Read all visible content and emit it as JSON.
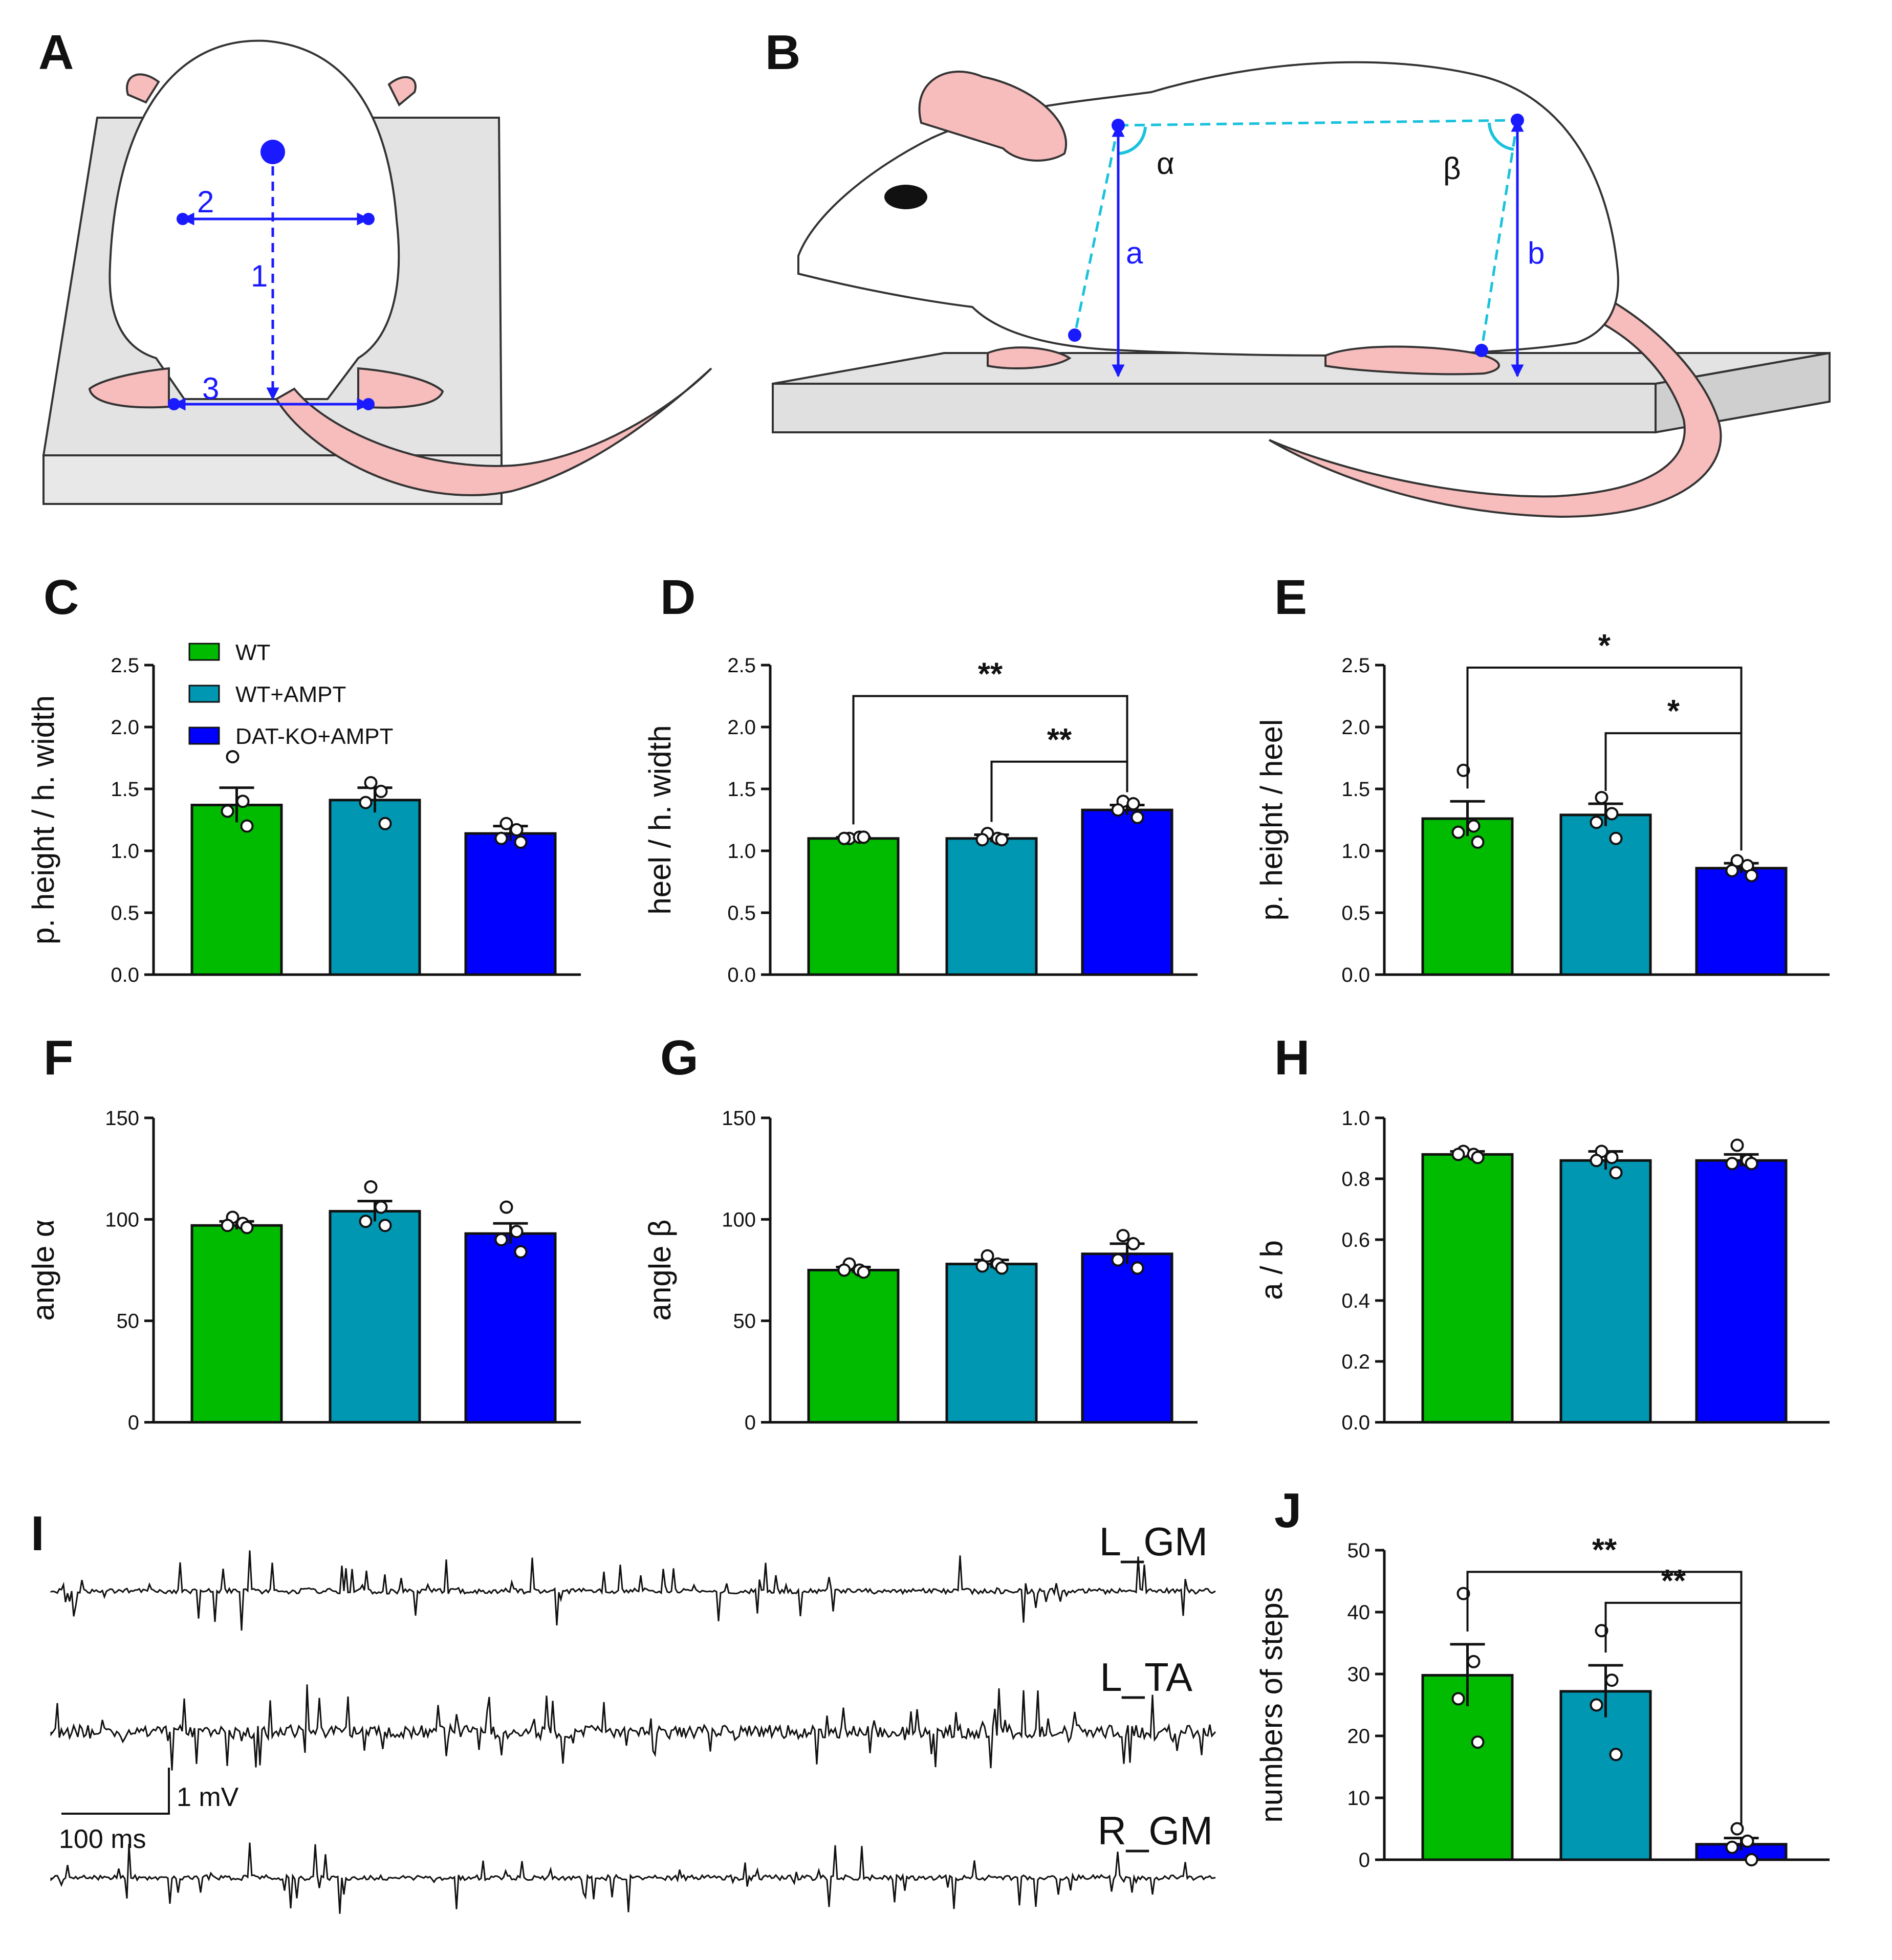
{
  "panels": {
    "A": {
      "label": "A",
      "markers": [
        "1",
        "2",
        "3"
      ]
    },
    "B": {
      "label": "B",
      "angles": [
        "α",
        "β"
      ],
      "heights": [
        "a",
        "b"
      ]
    },
    "I": {
      "label": "I"
    }
  },
  "legend": {
    "items": [
      "WT",
      "WT+AMPT",
      "DAT-KO+AMPT"
    ]
  },
  "colors": {
    "wt": "#00bb00",
    "wt_ampt": "#0097b2",
    "datko_ampt": "#0000ff",
    "line": "#111111",
    "guide": "#1a1aff",
    "cyan": "#19c2dd",
    "body": "#ffffff",
    "skin": "#f7bcbc",
    "floor": "#e3e3e3"
  },
  "emg": {
    "traces": [
      "L_GM",
      "L_TA",
      "R_GM"
    ],
    "scale_voltage": "1 mV",
    "scale_time": "100 ms"
  },
  "chart_data": [
    {
      "panel": "C",
      "type": "bar",
      "ylabel": "p. height / h. width",
      "categories": [
        "WT",
        "WT+AMPT",
        "DAT-KO+AMPT"
      ],
      "values": [
        1.37,
        1.41,
        1.14
      ],
      "sem": [
        0.14,
        0.1,
        0.06
      ],
      "points": [
        [
          1.76,
          1.4,
          1.32,
          1.2
        ],
        [
          1.55,
          1.48,
          1.39,
          1.22
        ],
        [
          1.22,
          1.17,
          1.1,
          1.07
        ]
      ],
      "ylim": [
        0,
        2.5
      ],
      "ticks": [
        "0.0",
        "0.5",
        "1.0",
        "1.5",
        "2.0",
        "2.5"
      ],
      "significance": []
    },
    {
      "panel": "D",
      "type": "bar",
      "ylabel": "heel / h. width",
      "categories": [
        "WT",
        "WT+AMPT",
        "DAT-KO+AMPT"
      ],
      "values": [
        1.1,
        1.1,
        1.33
      ],
      "sem": [
        0.01,
        0.03,
        0.04
      ],
      "points": [
        [
          1.1,
          1.11,
          1.1,
          1.11
        ],
        [
          1.14,
          1.1,
          1.09,
          1.09
        ],
        [
          1.4,
          1.38,
          1.33,
          1.27
        ]
      ],
      "ylim": [
        0,
        2.5
      ],
      "ticks": [
        "0.0",
        "0.5",
        "1.0",
        "1.5",
        "2.0",
        "2.5"
      ],
      "significance": [
        {
          "from": 0,
          "to": 2,
          "label": "**",
          "y": 2.25
        },
        {
          "from": 1,
          "to": 2,
          "label": "**",
          "y": 1.72
        }
      ]
    },
    {
      "panel": "E",
      "type": "bar",
      "ylabel": "p. height / heel",
      "categories": [
        "WT",
        "WT+AMPT",
        "DAT-KO+AMPT"
      ],
      "values": [
        1.26,
        1.29,
        0.86
      ],
      "sem": [
        0.14,
        0.09,
        0.04
      ],
      "points": [
        [
          1.65,
          1.2,
          1.15,
          1.07
        ],
        [
          1.43,
          1.3,
          1.23,
          1.1
        ],
        [
          0.92,
          0.88,
          0.84,
          0.8
        ]
      ],
      "ylim": [
        0,
        2.5
      ],
      "ticks": [
        "0.0",
        "0.5",
        "1.0",
        "1.5",
        "2.0",
        "2.5"
      ],
      "significance": [
        {
          "from": 0,
          "to": 2,
          "label": "*",
          "y": 2.48
        },
        {
          "from": 1,
          "to": 2,
          "label": "*",
          "y": 1.95
        }
      ]
    },
    {
      "panel": "F",
      "type": "bar",
      "ylabel": "angle α",
      "categories": [
        "WT",
        "WT+AMPT",
        "DAT-KO+AMPT"
      ],
      "values": [
        97,
        104,
        93
      ],
      "sem": [
        2,
        5,
        5
      ],
      "points": [
        [
          101,
          98,
          97,
          96
        ],
        [
          116,
          106,
          99,
          97
        ],
        [
          106,
          94,
          90,
          84
        ]
      ],
      "ylim": [
        0,
        150
      ],
      "ticks": [
        "0",
        "50",
        "100",
        "150"
      ],
      "significance": []
    },
    {
      "panel": "G",
      "type": "bar",
      "ylabel": "angle β",
      "categories": [
        "WT",
        "WT+AMPT",
        "DAT-KO+AMPT"
      ],
      "values": [
        75,
        78,
        83
      ],
      "sem": [
        1.5,
        2,
        5
      ],
      "points": [
        [
          78,
          75,
          75,
          74
        ],
        [
          82,
          78,
          77,
          76
        ],
        [
          92,
          88,
          80,
          76
        ]
      ],
      "ylim": [
        0,
        150
      ],
      "ticks": [
        "0",
        "50",
        "100",
        "150"
      ],
      "significance": []
    },
    {
      "panel": "H",
      "type": "bar",
      "ylabel": "a / b",
      "categories": [
        "WT",
        "WT+AMPT",
        "DAT-KO+AMPT"
      ],
      "values": [
        0.88,
        0.86,
        0.86
      ],
      "sem": [
        0.01,
        0.03,
        0.02
      ],
      "points": [
        [
          0.89,
          0.88,
          0.88,
          0.87
        ],
        [
          0.89,
          0.87,
          0.86,
          0.82
        ],
        [
          0.91,
          0.86,
          0.85,
          0.85
        ]
      ],
      "ylim": [
        0,
        1.0
      ],
      "ticks": [
        "0.0",
        "0.2",
        "0.4",
        "0.6",
        "0.8",
        "1.0"
      ],
      "significance": []
    },
    {
      "panel": "J",
      "type": "bar",
      "ylabel": "numbers of steps",
      "categories": [
        "WT",
        "WT+AMPT",
        "DAT-KO+AMPT"
      ],
      "values": [
        29.8,
        27.2,
        2.5
      ],
      "sem": [
        5.0,
        4.2,
        1.0
      ],
      "points": [
        [
          43,
          32,
          26,
          19
        ],
        [
          37,
          29,
          25,
          17
        ],
        [
          5,
          3,
          2,
          0
        ]
      ],
      "ylim": [
        0,
        50
      ],
      "ticks": [
        "0",
        "10",
        "20",
        "30",
        "40",
        "50"
      ],
      "significance": [
        {
          "from": 0,
          "to": 2,
          "label": "**",
          "y": 46.5
        },
        {
          "from": 1,
          "to": 2,
          "label": "**",
          "y": 41.5
        }
      ]
    }
  ]
}
